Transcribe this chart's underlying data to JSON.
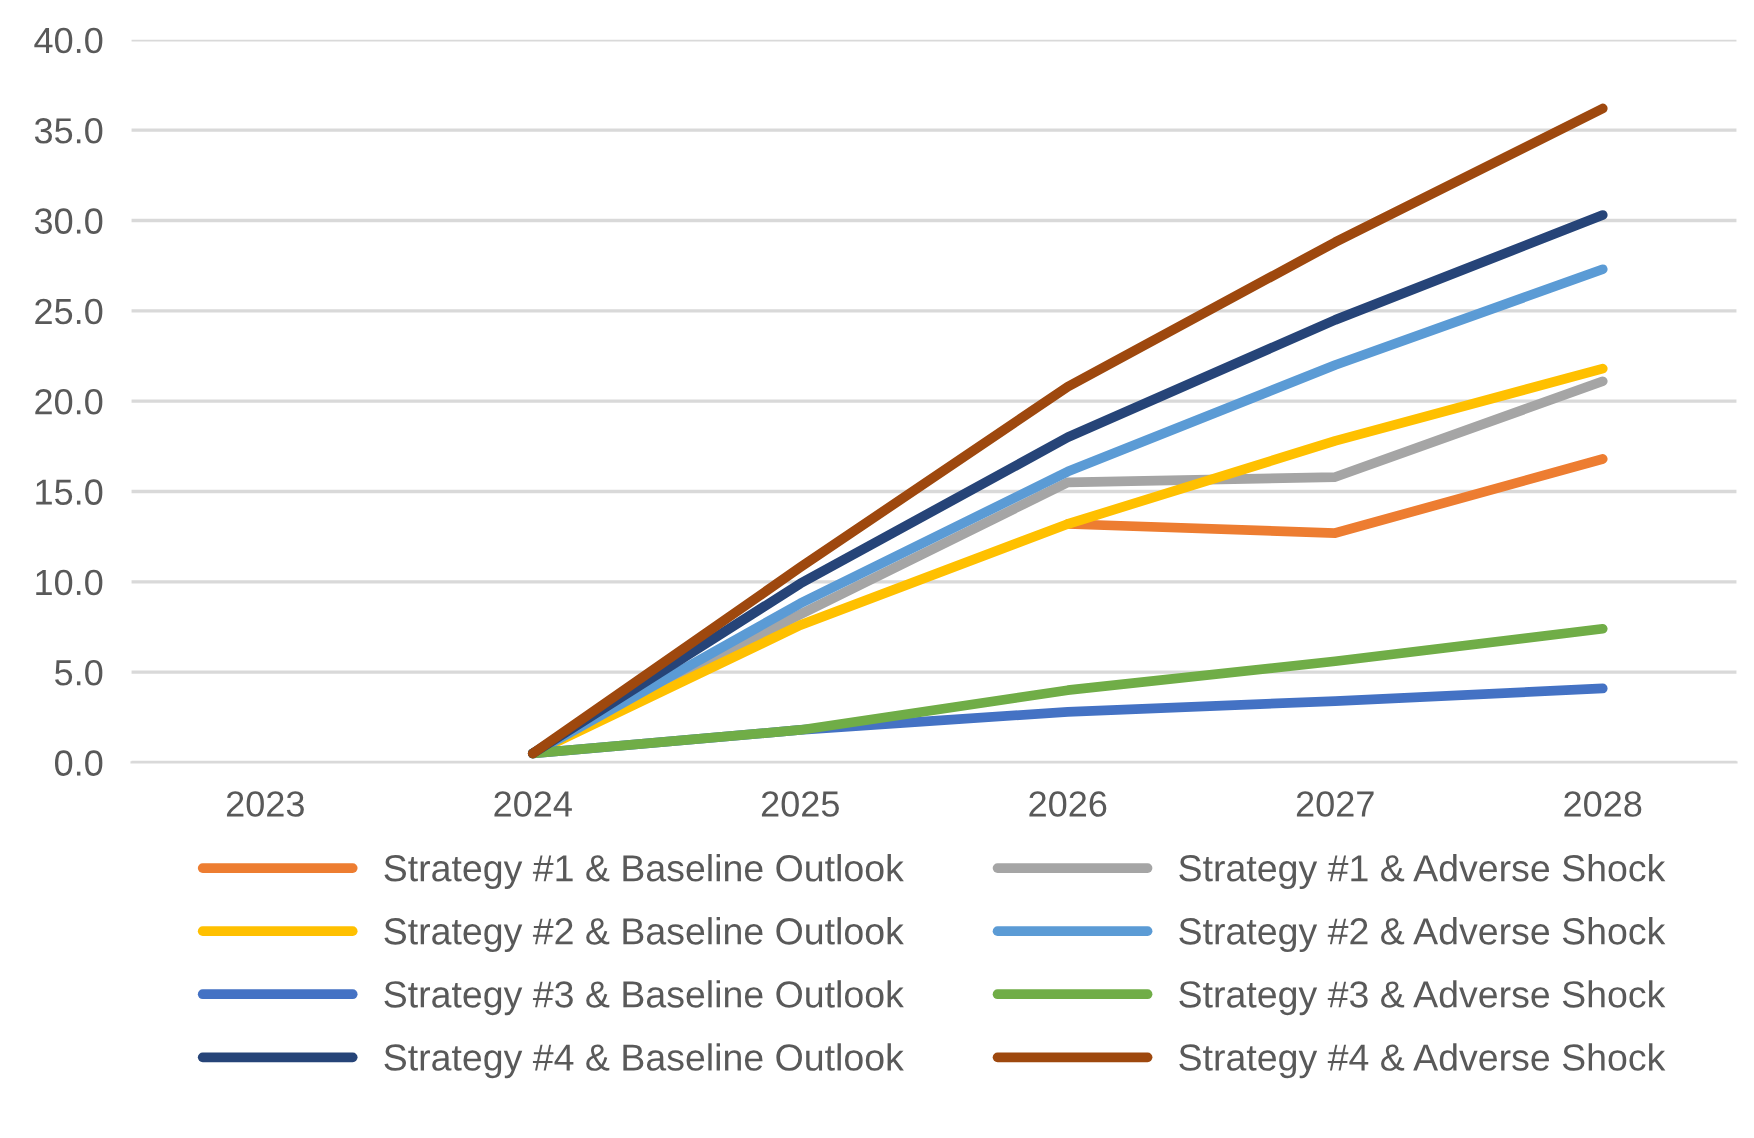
{
  "chart_data": {
    "type": "line",
    "categories": [
      "2023",
      "2024",
      "2025",
      "2026",
      "2027",
      "2028"
    ],
    "series": [
      {
        "name": "Strategy #1 & Baseline Outlook",
        "color": "#ed7d31",
        "values": [
          null,
          null,
          null,
          13.2,
          12.7,
          16.8
        ]
      },
      {
        "name": "Strategy #1 & Adverse Shock",
        "color": "#a5a5a5",
        "values": [
          null,
          0.5,
          8.2,
          15.5,
          15.8,
          21.1
        ]
      },
      {
        "name": "Strategy #2 & Baseline Outlook",
        "color": "#ffc000",
        "values": [
          null,
          0.5,
          7.6,
          13.2,
          17.8,
          21.8
        ]
      },
      {
        "name": "Strategy #2 & Adverse Shock",
        "color": "#5b9bd5",
        "values": [
          null,
          0.5,
          8.8,
          16.1,
          22.0,
          27.3
        ]
      },
      {
        "name": "Strategy #3 & Baseline Outlook",
        "color": "#4472c4",
        "values": [
          null,
          0.5,
          1.8,
          2.8,
          3.4,
          4.1
        ]
      },
      {
        "name": "Strategy #3 & Adverse Shock",
        "color": "#70ad47",
        "values": [
          null,
          0.5,
          1.8,
          4.0,
          5.6,
          7.4
        ]
      },
      {
        "name": "Strategy #4 & Baseline Outlook",
        "color": "#264478",
        "values": [
          null,
          0.5,
          9.9,
          18.0,
          24.5,
          30.3
        ]
      },
      {
        "name": "Strategy #4 & Adverse Shock",
        "color": "#9e480e",
        "values": [
          null,
          0.5,
          10.8,
          20.8,
          28.8,
          36.2
        ]
      }
    ],
    "ylim": [
      0,
      40
    ],
    "yticks": [
      {
        "value": 0,
        "label": "0.0"
      },
      {
        "value": 5,
        "label": "5.0"
      },
      {
        "value": 10,
        "label": "10.0"
      },
      {
        "value": 15,
        "label": "15.0"
      },
      {
        "value": 20,
        "label": "20.0"
      },
      {
        "value": 25,
        "label": "25.0"
      },
      {
        "value": 30,
        "label": "30.0"
      },
      {
        "value": 35,
        "label": "35.0"
      },
      {
        "value": 40,
        "label": "40.0"
      }
    ],
    "grid": "y",
    "legend": "bottom",
    "marker": "none",
    "line_style": "solid"
  }
}
